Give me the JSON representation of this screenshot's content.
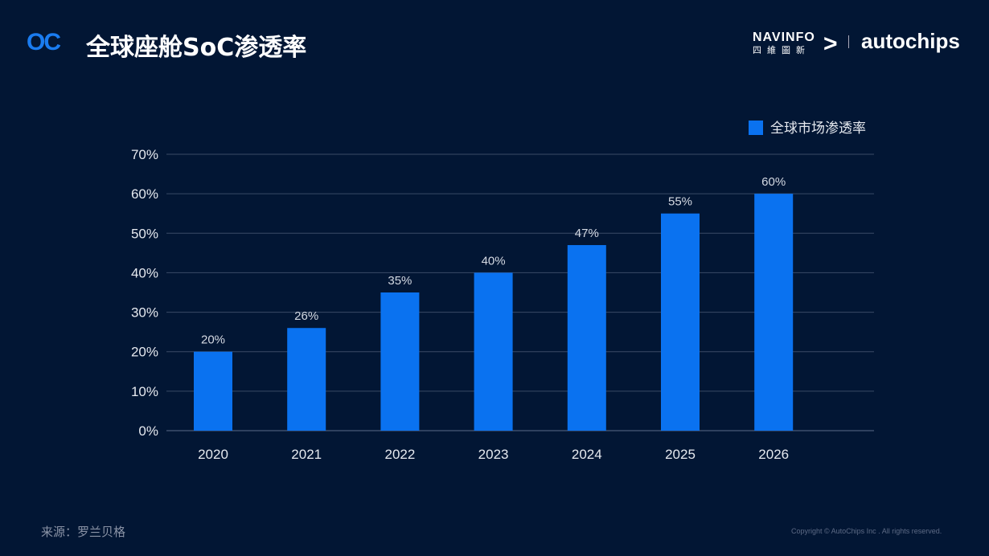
{
  "header": {
    "logo": "OC",
    "title": "全球座舱SoC渗透率",
    "partner_logo_1": "NAVINFO",
    "partner_logo_1_cn": "四維圖新",
    "partner_logo_2": "autochips"
  },
  "footer": {
    "source": "来源：罗兰贝格",
    "copyright": "Copyright © AutoChips Inc . All rights reserved."
  },
  "colors": {
    "background": "#021634",
    "bar": "#0A72F0",
    "grid": "#3a4a66"
  },
  "chart_data": {
    "type": "bar",
    "categories": [
      "2020",
      "2021",
      "2022",
      "2023",
      "2024",
      "2025",
      "2026"
    ],
    "series": [
      {
        "name": "全球市场渗透率",
        "values": [
          20,
          26,
          35,
          40,
          47,
          55,
          60
        ]
      }
    ],
    "data_labels": [
      "20%",
      "26%",
      "35%",
      "40%",
      "47%",
      "55%",
      "60%"
    ],
    "yticks": [
      "0%",
      "10%",
      "20%",
      "30%",
      "40%",
      "50%",
      "60%",
      "70%"
    ],
    "ylim": [
      0,
      70
    ],
    "grid": true,
    "legend": "top-right"
  }
}
